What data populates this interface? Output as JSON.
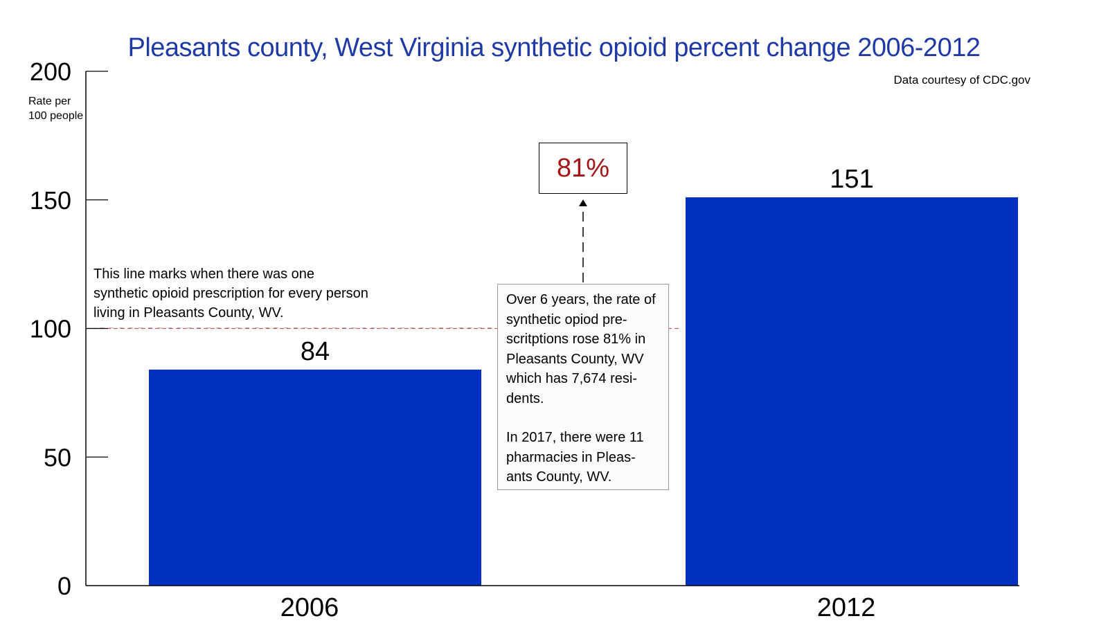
{
  "chart_data": {
    "type": "bar",
    "title": "Pleasants county, West Virginia synthetic opioid percent change 2006-2012",
    "source": "Data courtesy of CDC.gov",
    "ylabel": "Rate per 100 people",
    "xlabel": "",
    "categories": [
      "2006",
      "2012"
    ],
    "values": [
      84,
      151
    ],
    "data_labels": [
      "84",
      "151"
    ],
    "ylim": [
      0,
      200
    ],
    "yticks": [
      0,
      50,
      100,
      150,
      200
    ],
    "grid": false,
    "bar_color": "#0030c0",
    "title_color": "#1f3aa6",
    "reference_line": {
      "value": 100,
      "color": "#d06060",
      "style": "dashed"
    },
    "annotations": {
      "reference_note": "This line marks when there was one synthetic opioid prescription for every person living in Pleasants County, WV.",
      "percent_change": "81%",
      "percent_color": "#a51515",
      "info_paragraph_1": "Over 6 years, the rate of synthetic opiod pre-scritptions rose 81% in Pleasants County, WV which has 7,674 resi-dents.",
      "info_paragraph_2": "In 2017, there were 11 pharmacies in Pleas-ants County, WV."
    }
  }
}
